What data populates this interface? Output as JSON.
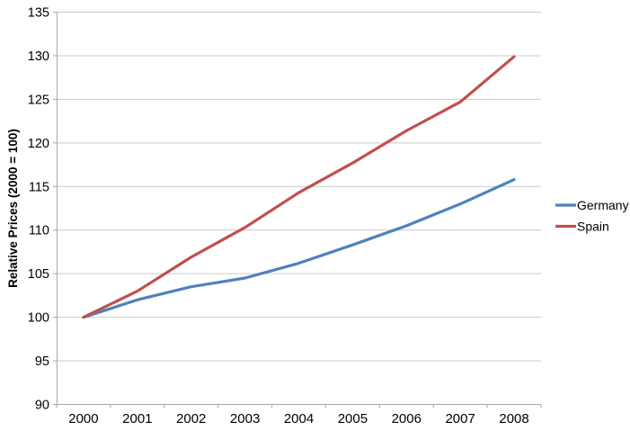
{
  "chart_data": {
    "type": "line",
    "title": "",
    "xlabel": "",
    "ylabel": "Relative Prices (2000 = 100)",
    "categories": [
      "2000",
      "2001",
      "2002",
      "2003",
      "2004",
      "2005",
      "2006",
      "2007",
      "2008"
    ],
    "series": [
      {
        "name": "Germany",
        "color": "#4F81BD",
        "values": [
          100,
          102,
          103.5,
          104.5,
          106.2,
          108.3,
          110.5,
          113.0,
          115.8
        ]
      },
      {
        "name": "Spain",
        "color": "#C0504D",
        "values": [
          100,
          103,
          106.9,
          110.3,
          114.3,
          117.7,
          121.4,
          124.7,
          129.9
        ]
      }
    ],
    "ylim": [
      90,
      135
    ],
    "ytick_step": 5,
    "grid": true,
    "legend_position": "right"
  },
  "colors": {
    "background": "#FFFFFF",
    "gridline": "#C9C9C9",
    "axis": "#A6A6A6",
    "text": "#000000"
  }
}
